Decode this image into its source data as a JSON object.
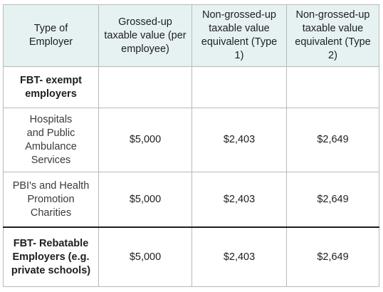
{
  "table": {
    "headers": [
      "Type of Employer",
      "Grossed-up taxable value (per employee)",
      "Non-grossed-up taxable value equivalent (Type 1)",
      "Non-grossed-up taxable value equivalent (Type 2)"
    ],
    "rows": [
      {
        "label": "FBT- exempt employers",
        "values": [
          "",
          "",
          ""
        ]
      },
      {
        "label": "Hospitals and Public Ambulance Services",
        "values": [
          "$5,000",
          "$2,403",
          "$2,649"
        ]
      },
      {
        "label": "PBI's and Health Promotion Charities",
        "values": [
          "$5,000",
          "$2,403",
          "$2,649"
        ]
      },
      {
        "label": "FBT- Rebatable Employers (e.g. private schools)",
        "values": [
          "$5,000",
          "$2,403",
          "$2,649"
        ]
      }
    ]
  },
  "colors": {
    "header_bg": "#e6f1f2",
    "border": "#b9b9b9",
    "divider": "#1e1e1e"
  }
}
